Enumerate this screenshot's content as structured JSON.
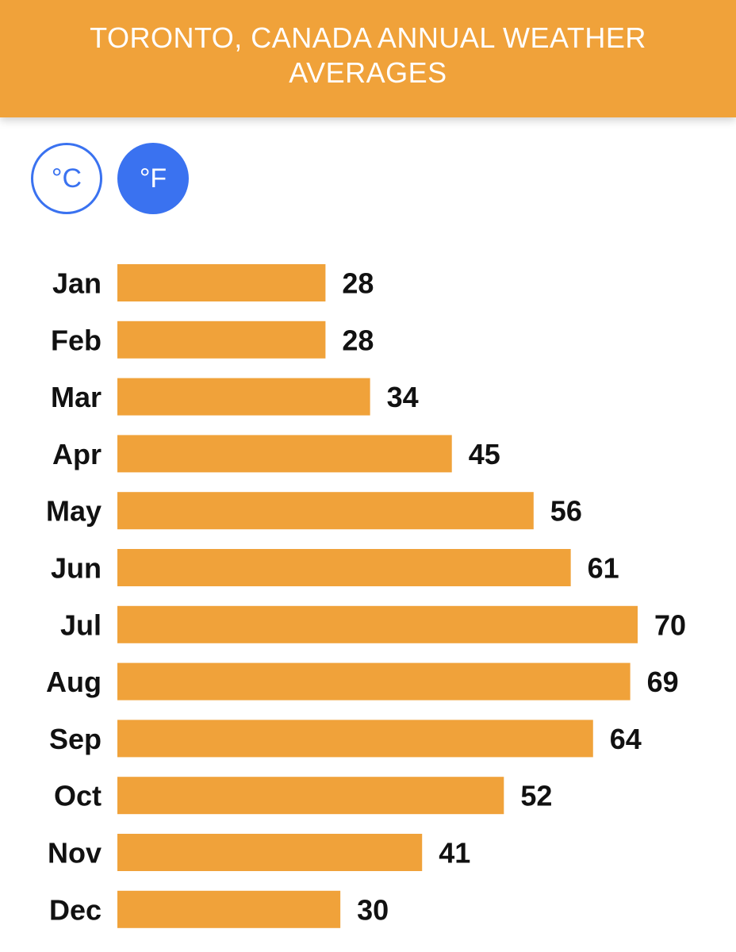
{
  "header": {
    "title": "TORONTO, CANADA ANNUAL WEATHER AVERAGES"
  },
  "units": {
    "celsius_label": "°C",
    "fahrenheit_label": "°F",
    "selected": "°F"
  },
  "colors": {
    "accent": "#f0a23a",
    "toggle": "#3a72f0"
  },
  "chart_data": {
    "type": "bar",
    "orientation": "horizontal",
    "categories": [
      "Jan",
      "Feb",
      "Mar",
      "Apr",
      "May",
      "Jun",
      "Jul",
      "Aug",
      "Sep",
      "Oct",
      "Nov",
      "Dec"
    ],
    "values": [
      28,
      28,
      34,
      45,
      56,
      61,
      70,
      69,
      64,
      52,
      41,
      30
    ],
    "title": "TORONTO, CANADA ANNUAL WEATHER AVERAGES",
    "xlim": [
      0,
      70
    ],
    "grid": false,
    "data_labels": true
  }
}
